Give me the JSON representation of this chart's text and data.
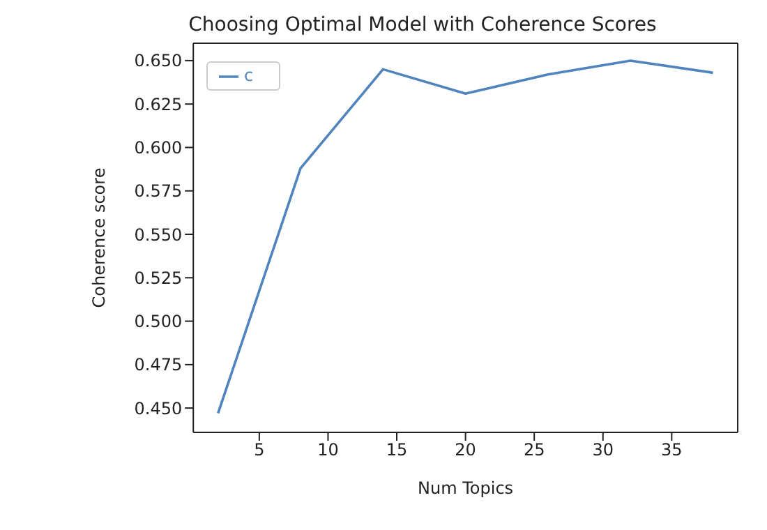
{
  "chart_data": {
    "type": "line",
    "title": "Choosing Optimal Model with Coherence Scores",
    "xlabel": "Num Topics",
    "ylabel": "Coherence score",
    "x": [
      2,
      8,
      14,
      20,
      26,
      32,
      38
    ],
    "series": [
      {
        "name": "c",
        "color": "#4f84bd",
        "values": [
          0.447,
          0.588,
          0.645,
          0.631,
          0.642,
          0.65,
          0.643
        ]
      }
    ],
    "xlim": [
      0.2,
      39.8
    ],
    "xticks": [
      5,
      10,
      15,
      20,
      25,
      30,
      35
    ],
    "ylim": [
      0.436,
      0.66
    ],
    "yticks": [
      {
        "value": 0.45,
        "label": "0.450"
      },
      {
        "value": 0.475,
        "label": "0.475"
      },
      {
        "value": 0.5,
        "label": "0.500"
      },
      {
        "value": 0.525,
        "label": "0.525"
      },
      {
        "value": 0.55,
        "label": "0.550"
      },
      {
        "value": 0.575,
        "label": "0.575"
      },
      {
        "value": 0.6,
        "label": "0.600"
      },
      {
        "value": 0.625,
        "label": "0.625"
      },
      {
        "value": 0.65,
        "label": "0.650"
      }
    ],
    "grid": false,
    "legend": "top left",
    "marker": "none",
    "line_style": "solid"
  }
}
